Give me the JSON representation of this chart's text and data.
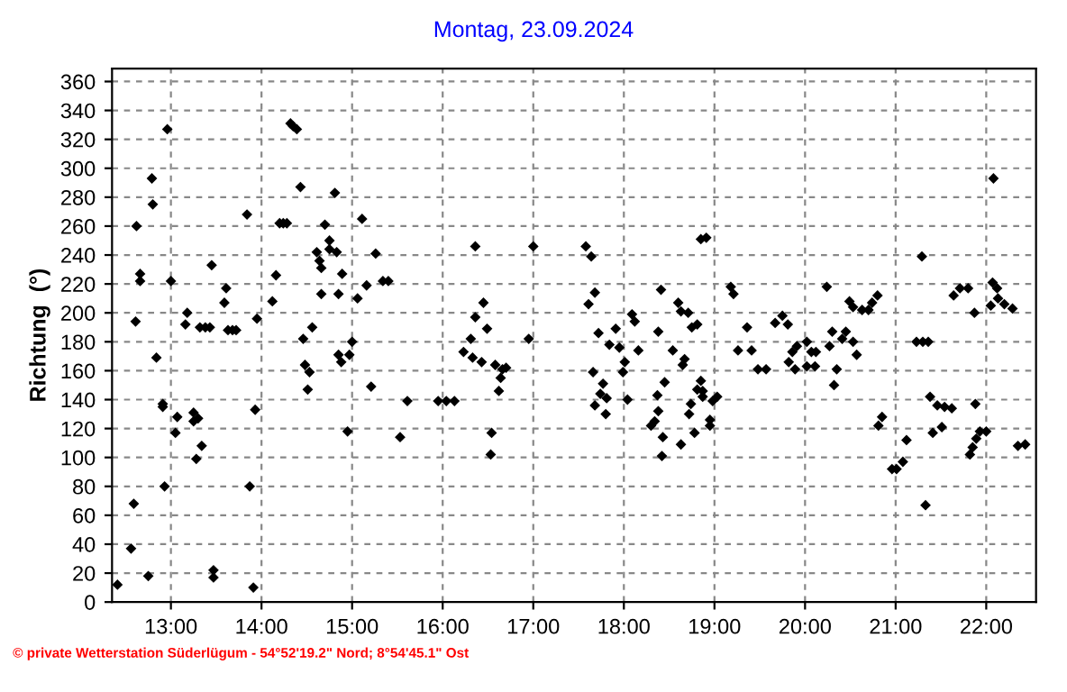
{
  "chart_data": {
    "type": "scatter",
    "title": "Montag, 23.09.2024",
    "ylabel": "Richtung  (°)",
    "annotations": [
      "© private Wetterstation Süderlügum - 54°52'19.2\" Nord; 8°54'45.1\" Ost"
    ],
    "xlim": [
      12.35,
      22.55
    ],
    "ylim": [
      0,
      369
    ],
    "xticks": [
      {
        "value": 13,
        "label": "13:00"
      },
      {
        "value": 14,
        "label": "14:00"
      },
      {
        "value": 15,
        "label": "15:00"
      },
      {
        "value": 16,
        "label": "16:00"
      },
      {
        "value": 17,
        "label": "17:00"
      },
      {
        "value": 18,
        "label": "18:00"
      },
      {
        "value": 19,
        "label": "19:00"
      },
      {
        "value": 20,
        "label": "20:00"
      },
      {
        "value": 21,
        "label": "21:00"
      },
      {
        "value": 22,
        "label": "22:00"
      }
    ],
    "yticks": [
      0,
      20,
      40,
      60,
      80,
      100,
      120,
      140,
      160,
      180,
      200,
      220,
      240,
      260,
      280,
      300,
      320,
      340,
      360
    ],
    "grid": true,
    "marker": "diamond",
    "series": [
      {
        "color": "#000000",
        "x": [
          12.41,
          12.56,
          12.59,
          12.75,
          12.62,
          12.61,
          12.66,
          12.66,
          12.79,
          12.8,
          12.96,
          12.84,
          12.93,
          12.91,
          12.91,
          13.0,
          13.07,
          13.05,
          13.16,
          13.18,
          13.25,
          13.25,
          13.3,
          13.28,
          13.34,
          13.32,
          13.38,
          13.43,
          13.45,
          13.47,
          13.47,
          13.59,
          13.61,
          13.63,
          13.68,
          13.72,
          13.84,
          13.87,
          13.91,
          13.93,
          13.95,
          14.12,
          14.16,
          14.2,
          14.24,
          14.28,
          14.32,
          14.35,
          14.39,
          14.43,
          14.46,
          14.48,
          14.51,
          14.53,
          14.56,
          14.61,
          14.64,
          14.66,
          14.66,
          14.7,
          14.75,
          14.75,
          14.81,
          14.83,
          14.85,
          14.88,
          14.89,
          14.85,
          14.95,
          14.97,
          15.0,
          15.06,
          15.11,
          15.16,
          15.26,
          15.34,
          15.4,
          15.21,
          15.53,
          15.61,
          15.95,
          16.04,
          16.13,
          16.36,
          16.45,
          16.36,
          16.49,
          16.31,
          16.23,
          16.33,
          16.43,
          16.54,
          16.53,
          16.58,
          16.66,
          16.64,
          16.62,
          16.7,
          16.95,
          17.0,
          17.58,
          17.64,
          17.68,
          17.61,
          17.72,
          17.66,
          17.77,
          17.74,
          17.81,
          17.68,
          17.8,
          17.84,
          17.91,
          17.95,
          18.01,
          17.99,
          18.04,
          18.09,
          18.12,
          18.16,
          18.38,
          18.41,
          18.3,
          18.34,
          18.38,
          18.37,
          18.45,
          18.43,
          18.42,
          18.54,
          18.6,
          18.63,
          18.67,
          18.65,
          18.63,
          18.71,
          18.74,
          18.72,
          18.78,
          18.75,
          18.85,
          18.91,
          18.81,
          18.81,
          18.85,
          18.87,
          18.87,
          18.98,
          19.03,
          18.95,
          18.95,
          19.18,
          19.21,
          19.36,
          19.41,
          19.26,
          19.48,
          19.57,
          19.67,
          19.75,
          19.81,
          19.82,
          19.86,
          19.91,
          19.89,
          20.02,
          20.07,
          20.12,
          20.02,
          20.11,
          20.24,
          20.27,
          20.3,
          20.35,
          20.32,
          20.41,
          20.45,
          20.53,
          20.57,
          20.49,
          20.53,
          20.63,
          20.7,
          20.74,
          20.8,
          20.81,
          20.85,
          20.96,
          21.01,
          21.08,
          21.12,
          21.23,
          21.3,
          21.36,
          21.29,
          21.33,
          21.38,
          21.41,
          21.46,
          21.54,
          21.62,
          21.51,
          21.64,
          21.71,
          21.8,
          21.87,
          21.88,
          21.82,
          21.85,
          21.89,
          21.93,
          22.0,
          22.08,
          22.07,
          22.12,
          22.13,
          22.2,
          22.29,
          22.05,
          22.35,
          22.43
        ],
        "values": [
          12,
          37,
          68,
          18,
          260,
          194,
          222,
          227,
          293,
          275,
          327,
          169,
          80,
          135,
          137,
          222,
          128,
          117,
          192,
          200,
          131,
          125,
          127,
          99,
          108,
          190,
          190,
          190,
          233,
          22,
          17,
          207,
          217,
          188,
          188,
          188,
          268,
          80,
          10,
          133,
          196,
          208,
          226,
          262,
          262,
          262,
          331,
          329,
          327,
          287,
          182,
          164,
          147,
          159,
          190,
          242,
          236,
          231,
          213,
          261,
          250,
          244,
          283,
          242,
          171,
          166,
          227,
          213,
          118,
          171,
          180,
          210,
          265,
          219,
          241,
          222,
          222,
          149,
          114,
          139,
          139,
          139,
          139,
          246,
          207,
          197,
          189,
          182,
          173,
          169,
          166,
          117,
          102,
          164,
          161,
          155,
          146,
          162,
          182,
          246,
          246,
          239,
          214,
          206,
          186,
          159,
          151,
          144,
          141,
          136,
          130,
          178,
          189,
          176,
          166,
          159,
          140,
          199,
          194,
          174,
          187,
          216,
          122,
          125,
          132,
          143,
          152,
          114,
          101,
          174,
          207,
          201,
          168,
          164,
          109,
          200,
          137,
          130,
          117,
          190,
          251,
          252,
          192,
          147,
          153,
          146,
          142,
          139,
          142,
          126,
          122,
          218,
          213,
          190,
          174,
          174,
          161,
          161,
          193,
          198,
          192,
          166,
          173,
          177,
          161,
          180,
          173,
          173,
          163,
          163,
          218,
          177,
          187,
          161,
          150,
          182,
          187,
          180,
          171,
          208,
          204,
          202,
          202,
          207,
          212,
          122,
          128,
          92,
          92,
          97,
          112,
          180,
          180,
          180,
          239,
          67,
          142,
          117,
          136,
          135,
          134,
          121,
          212,
          217,
          217,
          200,
          137,
          102,
          107,
          113,
          118,
          118,
          293,
          221,
          217,
          210,
          206,
          203,
          205,
          108,
          109
        ]
      }
    ]
  }
}
